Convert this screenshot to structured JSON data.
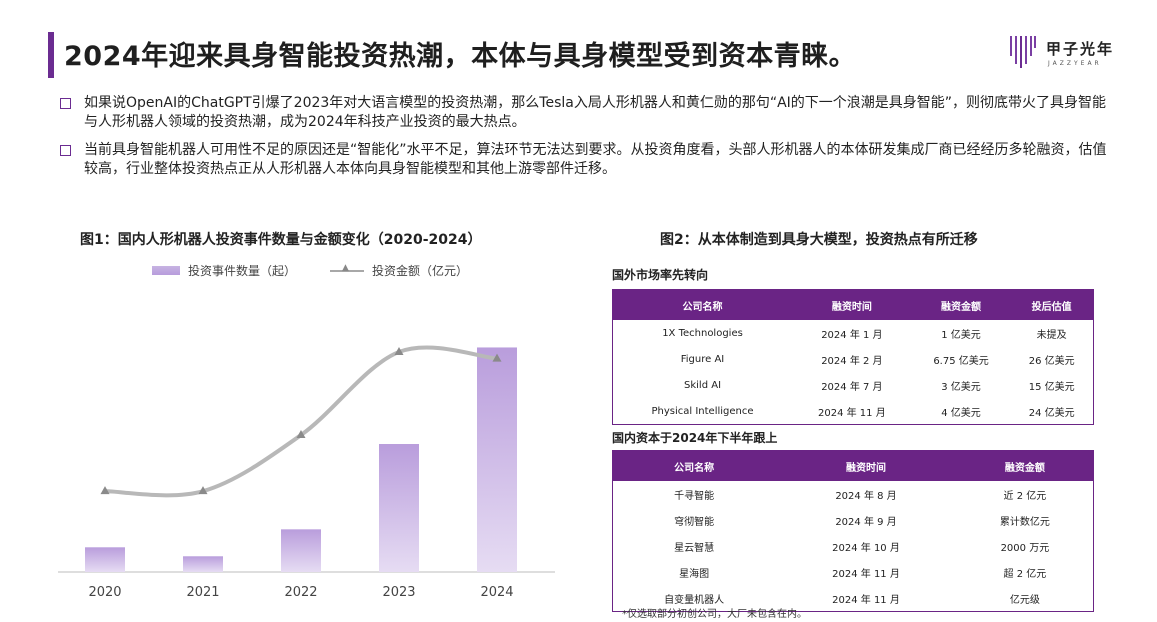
{
  "title": "2024年迎来具身智能投资热潮，本体与具身模型受到资本青睐。",
  "logo": {
    "cn": "甲子光年",
    "en": "JAZZYEAR"
  },
  "bullets": [
    "如果说OpenAI的ChatGPT引爆了2023年对大语言模型的投资热潮，那么Tesla入局人形机器人和黄仁勋的那句“AI的下一个浪潮是具身智能”，则彻底带火了具身智能与人形机器人领域的投资热潮，成为2024年科技产业投资的最大热点。",
    "当前具身智能机器人可用性不足的原因还是“智能化”水平不足，算法环节无法达到要求。从投资角度看，头部人形机器人的本体研发集成厂商已经经历多轮融资，估值较高，行业整体投资热点正从人形机器人本体向具身智能模型和其他上游零部件迁移。"
  ],
  "fig1_title": "图1：国内人形机器人投资事件数量与金额变化（2020-2024）",
  "fig2_title": "图2：从本体制造到具身大模型，投资热点有所迁移",
  "chart_data": {
    "type": "bar",
    "categories": [
      "2020",
      "2021",
      "2022",
      "2023",
      "2024"
    ],
    "series": [
      {
        "name": "投资事件数量（起）",
        "type": "bar",
        "values": [
          11,
          7,
          19,
          57,
          100
        ]
      },
      {
        "name": "投资金额（亿元）",
        "type": "line",
        "values": [
          36,
          36,
          61,
          98,
          95
        ]
      }
    ],
    "ylim": [
      0,
      110
    ],
    "grid": false,
    "legend": "top",
    "colors": {
      "bar": "#b99ddc",
      "line": "#b8b8b8",
      "marker": "#8a8a8a"
    }
  },
  "table1": {
    "subtitle": "国外市场率先转向",
    "headers": [
      "公司名称",
      "融资时间",
      "融资金额",
      "投后估值"
    ],
    "rows": [
      [
        "1X Technologies",
        "2024 年 1 月",
        "1 亿美元",
        "未提及"
      ],
      [
        "Figure AI",
        "2024 年 2 月",
        "6.75 亿美元",
        "26 亿美元"
      ],
      [
        "Skild AI",
        "2024 年 7 月",
        "3 亿美元",
        "15 亿美元"
      ],
      [
        "Physical Intelligence",
        "2024 年 11 月",
        "4 亿美元",
        "24 亿美元"
      ]
    ]
  },
  "table2": {
    "subtitle": "国内资本于2024年下半年跟上",
    "headers": [
      "公司名称",
      "融资时间",
      "融资金额"
    ],
    "rows": [
      [
        "千寻智能",
        "2024 年 8 月",
        "近 2 亿元"
      ],
      [
        "穹彻智能",
        "2024 年 9 月",
        "累计数亿元"
      ],
      [
        "星云智慧",
        "2024 年 10 月",
        "2000 万元"
      ],
      [
        "星海图",
        "2024 年 11 月",
        "超 2 亿元"
      ],
      [
        "自变量机器人",
        "2024 年 11 月",
        "亿元级"
      ]
    ]
  },
  "note": "*仅选取部分初创公司，大厂未包含在内。",
  "colors": {
    "accent": "#6b2c91",
    "table_header": "#6a2485"
  }
}
